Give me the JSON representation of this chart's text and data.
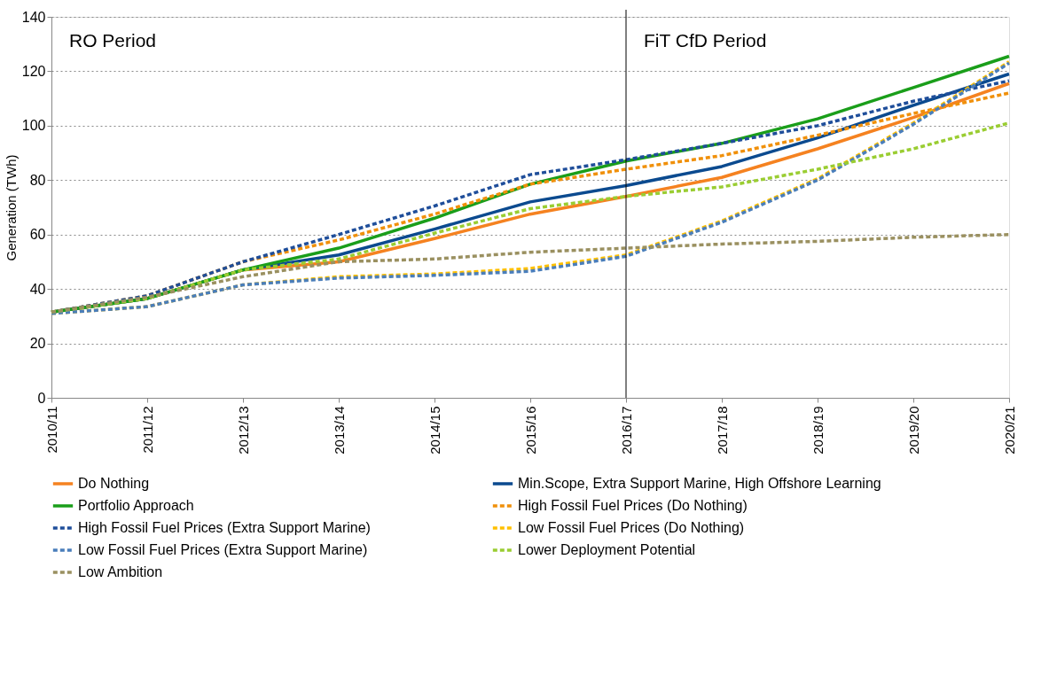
{
  "chart_data": {
    "type": "line",
    "ylabel": "Generation (TWh)",
    "categories": [
      "2010/11",
      "2011/12",
      "2012/13",
      "2013/14",
      "2014/15",
      "2015/16",
      "2016/17",
      "2017/18",
      "2018/19",
      "2019/20",
      "2020/21"
    ],
    "ylim": [
      0,
      140
    ],
    "yticks": [
      0,
      20,
      40,
      60,
      80,
      100,
      120,
      140
    ],
    "grid": "y",
    "legend": "bottom",
    "marker": "none",
    "ref_lines": [
      {
        "axis": "x",
        "value": "2016/17",
        "color": "#000000"
      }
    ],
    "annotations": [
      "RO Period",
      "FiT CfD Period"
    ],
    "series": [
      {
        "name": "Do Nothing",
        "color": "#f58220",
        "line_style": "solid",
        "values": [
          31.5,
          36.5,
          47,
          50,
          58.5,
          67.5,
          74,
          81,
          91.5,
          103,
          115.5
        ]
      },
      {
        "name": "Min.Scope, Extra Support Marine, High Offshore Learning",
        "color": "#0b4a8f",
        "line_style": "solid",
        "values": [
          31.5,
          36.5,
          47,
          52.5,
          62,
          72,
          78,
          85,
          95.5,
          107.5,
          119
        ]
      },
      {
        "name": "Portfolio Approach",
        "color": "#1a9e1a",
        "line_style": "solid",
        "values": [
          31.5,
          36.5,
          47,
          55,
          66,
          78.5,
          87,
          93.5,
          102.5,
          114,
          125.5
        ]
      },
      {
        "name": "High Fossil Fuel Prices (Do Nothing)",
        "color": "#f0900a",
        "line_style": "dashed",
        "values": [
          31.5,
          37.5,
          50,
          58,
          67.5,
          78.5,
          84,
          89,
          96.5,
          104.5,
          112
        ]
      },
      {
        "name": "High Fossil Fuel Prices (Extra Support Marine)",
        "color": "#1f4e9a",
        "line_style": "dashed",
        "values": [
          31.5,
          37.5,
          50,
          60,
          70.5,
          82,
          87.5,
          93.5,
          100,
          109,
          116.5
        ]
      },
      {
        "name": "Low Fossil Fuel Prices (Do Nothing)",
        "color": "#ffc000",
        "line_style": "dashed",
        "values": [
          31,
          33.5,
          41.5,
          44.5,
          45.5,
          47.5,
          52.5,
          65,
          80.5,
          101,
          123.5
        ]
      },
      {
        "name": "Low Fossil Fuel Prices (Extra Support Marine)",
        "color": "#4a7ebb",
        "line_style": "dashed",
        "values": [
          31,
          33.5,
          41.5,
          44,
          45,
          46.5,
          52,
          64.5,
          80,
          100.5,
          123
        ]
      },
      {
        "name": "Lower Deployment Potential",
        "color": "#9acd32",
        "line_style": "dashed",
        "values": [
          31.5,
          36.5,
          47,
          51,
          60.5,
          69.5,
          74,
          77.5,
          84,
          91.5,
          101
        ]
      },
      {
        "name": "Low Ambition",
        "color": "#9a9060",
        "line_style": "dashed",
        "values": [
          31.5,
          37,
          44.5,
          50,
          51,
          53.5,
          55,
          56.5,
          57.5,
          59,
          60
        ]
      }
    ]
  }
}
